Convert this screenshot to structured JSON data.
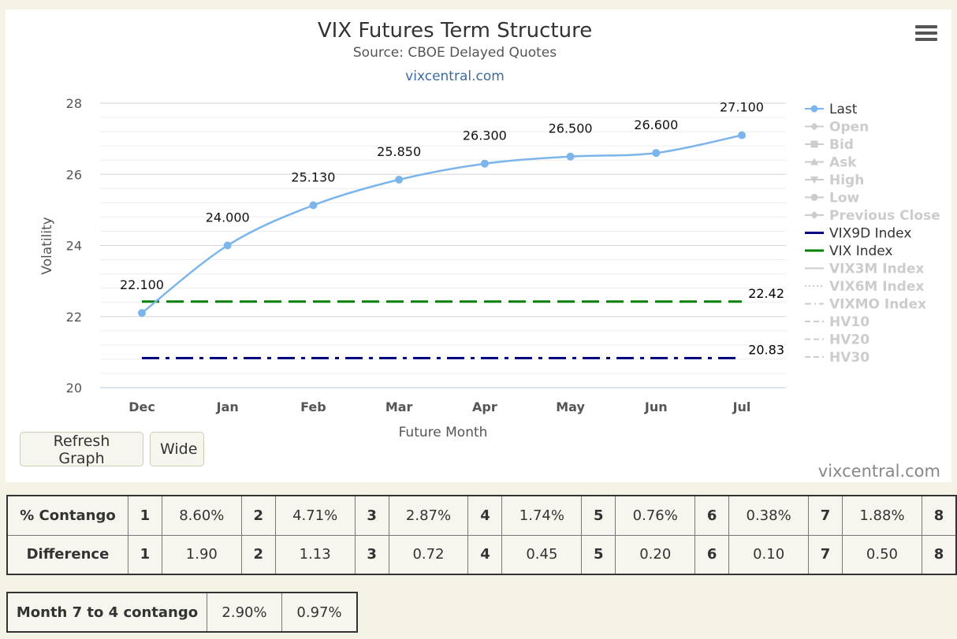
{
  "chart_data": {
    "type": "line",
    "title": "VIX Futures Term Structure",
    "subtitle": "Source: CBOE Delayed Quotes",
    "link": "vixcentral.com",
    "xlabel": "Future Month",
    "ylabel": "Volatility",
    "categories": [
      "Dec",
      "Jan",
      "Feb",
      "Mar",
      "Apr",
      "May",
      "Jun",
      "Jul"
    ],
    "yticks": [
      20,
      22,
      24,
      26,
      28
    ],
    "ylim": [
      20,
      28
    ],
    "grid": true,
    "series": [
      {
        "name": "Last",
        "values": [
          22.1,
          24.0,
          25.13,
          25.85,
          26.3,
          26.5,
          26.6,
          27.1
        ],
        "labels": [
          "22.100",
          "24.000",
          "25.130",
          "25.850",
          "26.300",
          "26.500",
          "26.600",
          "27.100"
        ],
        "color": "#7cb5ec"
      },
      {
        "name": "VIX9D Index",
        "value": 20.83,
        "label": "20.83",
        "color": "#000080"
      },
      {
        "name": "VIX Index",
        "value": 22.42,
        "label": "22.42",
        "color": "#008000"
      }
    ],
    "legend": {
      "placement": "right",
      "items": [
        {
          "name": "Last",
          "active": true,
          "symbol": "circle-line"
        },
        {
          "name": "Open",
          "active": false,
          "symbol": "diamond-line"
        },
        {
          "name": "Bid",
          "active": false,
          "symbol": "square-line"
        },
        {
          "name": "Ask",
          "active": false,
          "symbol": "triangle-line"
        },
        {
          "name": "High",
          "active": false,
          "symbol": "triangle-down-line"
        },
        {
          "name": "Low",
          "active": false,
          "symbol": "circle-line"
        },
        {
          "name": "Previous Close",
          "active": false,
          "symbol": "diamond-line"
        },
        {
          "name": "VIX9D Index",
          "active": true,
          "symbol": "line",
          "color": "#000080"
        },
        {
          "name": "VIX Index",
          "active": true,
          "symbol": "line",
          "color": "#008000"
        },
        {
          "name": "VIX3M Index",
          "active": false,
          "symbol": "line"
        },
        {
          "name": "VIX6M Index",
          "active": false,
          "symbol": "dotted"
        },
        {
          "name": "VIXMO Index",
          "active": false,
          "symbol": "dashdot"
        },
        {
          "name": "HV10",
          "active": false,
          "symbol": "dashed"
        },
        {
          "name": "HV20",
          "active": false,
          "symbol": "dashed"
        },
        {
          "name": "HV30",
          "active": false,
          "symbol": "dashed"
        }
      ]
    }
  },
  "buttons": {
    "refresh": "Refresh Graph",
    "wide": "Wide"
  },
  "watermark": "vixcentral.com",
  "menu_icon": "hamburger-menu-icon",
  "contango_table": {
    "rows": [
      {
        "label": "% Contango",
        "cells": [
          {
            "n": "1",
            "v": "8.60%"
          },
          {
            "n": "2",
            "v": "4.71%"
          },
          {
            "n": "3",
            "v": "2.87%"
          },
          {
            "n": "4",
            "v": "1.74%"
          },
          {
            "n": "5",
            "v": "0.76%"
          },
          {
            "n": "6",
            "v": "0.38%"
          },
          {
            "n": "7",
            "v": "1.88%"
          }
        ],
        "last": "8"
      },
      {
        "label": "Difference",
        "cells": [
          {
            "n": "1",
            "v": "1.90"
          },
          {
            "n": "2",
            "v": "1.13"
          },
          {
            "n": "3",
            "v": "0.72"
          },
          {
            "n": "4",
            "v": "0.45"
          },
          {
            "n": "5",
            "v": "0.20"
          },
          {
            "n": "6",
            "v": "0.10"
          },
          {
            "n": "7",
            "v": "0.50"
          }
        ],
        "last": "8"
      }
    ]
  },
  "month74": {
    "label": "Month 7 to 4 contango",
    "values": [
      "2.90%",
      "0.97%"
    ]
  }
}
